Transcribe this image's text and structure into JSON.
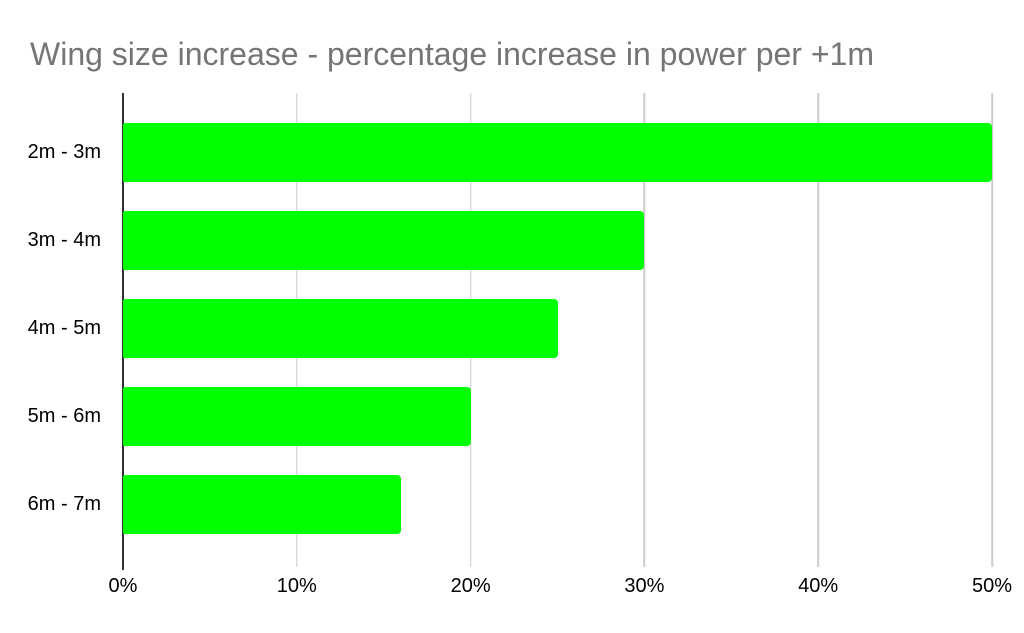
{
  "chart_data": {
    "type": "bar",
    "orientation": "horizontal",
    "title": "Wing size increase - percentage increase in power per +1m",
    "categories": [
      "2m - 3m",
      "3m - 4m",
      "4m - 5m",
      "5m - 6m",
      "6m - 7m"
    ],
    "values": [
      50,
      30,
      25,
      20,
      16
    ],
    "value_format": "percent",
    "xlabel": "",
    "ylabel": "",
    "xlim": [
      0,
      50
    ],
    "x_ticks": [
      {
        "value": 0,
        "label": "0%"
      },
      {
        "value": 10,
        "label": "10%"
      },
      {
        "value": 20,
        "label": "20%"
      },
      {
        "value": 30,
        "label": "30%"
      },
      {
        "value": 40,
        "label": "40%"
      },
      {
        "value": 50,
        "label": "50%"
      }
    ],
    "grid": true,
    "legend": "none",
    "colors": {
      "bar": "#00ff00",
      "gridline": "#cccccc",
      "axis_baseline": "#333333",
      "title": "#757575",
      "label": "#000000",
      "background": "#ffffff"
    }
  }
}
